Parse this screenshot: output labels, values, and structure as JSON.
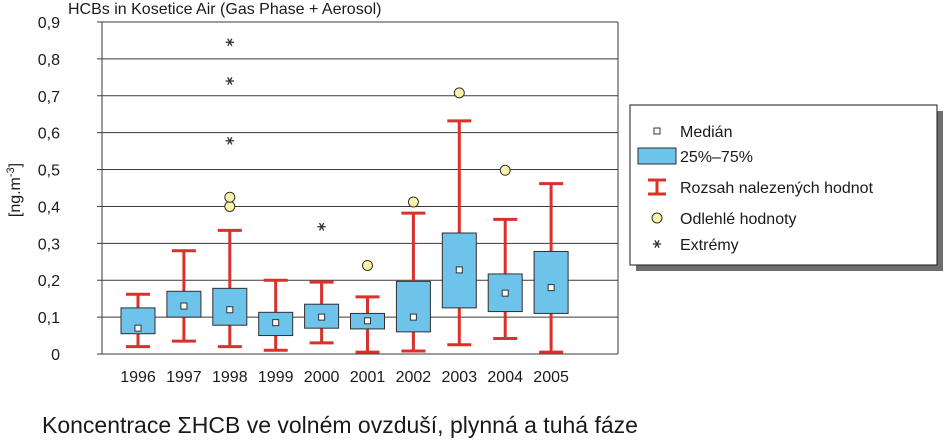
{
  "chart_data": {
    "type": "box",
    "title": "HCBs in Kosetice Air (Gas Phase + Aerosol)",
    "ylabel": "[ng.m-3]",
    "ylabel_main": "[ng.m",
    "ylabel_sup": "-3",
    "ylabel_close": "]",
    "ylim": [
      0,
      0.9
    ],
    "yticks": [
      "0",
      "0,1",
      "0,2",
      "0,3",
      "0,4",
      "0,5",
      "0,6",
      "0,7",
      "0,8",
      "0,9"
    ],
    "grid": true,
    "legend_position": "right",
    "categories": [
      "1996",
      "1997",
      "1998",
      "1999",
      "2000",
      "2001",
      "2002",
      "2003",
      "2004",
      "2005"
    ],
    "series": [
      {
        "year": "1996",
        "min": 0.02,
        "q1": 0.055,
        "median": 0.07,
        "q3": 0.125,
        "max": 0.162,
        "outliers": [],
        "extremes": []
      },
      {
        "year": "1997",
        "min": 0.035,
        "q1": 0.1,
        "median": 0.13,
        "q3": 0.17,
        "max": 0.28,
        "outliers": [],
        "extremes": []
      },
      {
        "year": "1998",
        "min": 0.02,
        "q1": 0.078,
        "median": 0.12,
        "q3": 0.178,
        "max": 0.335,
        "outliers": [
          0.4,
          0.425
        ],
        "extremes": [
          0.578,
          0.74,
          0.845
        ]
      },
      {
        "year": "1999",
        "min": 0.01,
        "q1": 0.05,
        "median": 0.085,
        "q3": 0.113,
        "max": 0.2,
        "outliers": [],
        "extremes": []
      },
      {
        "year": "2000",
        "min": 0.03,
        "q1": 0.07,
        "median": 0.1,
        "q3": 0.135,
        "max": 0.195,
        "outliers": [],
        "extremes": [
          0.345
        ]
      },
      {
        "year": "2001",
        "min": 0.005,
        "q1": 0.068,
        "median": 0.09,
        "q3": 0.11,
        "max": 0.155,
        "outliers": [
          0.24
        ],
        "extremes": []
      },
      {
        "year": "2002",
        "min": 0.008,
        "q1": 0.06,
        "median": 0.1,
        "q3": 0.197,
        "max": 0.382,
        "outliers": [
          0.412
        ],
        "extremes": []
      },
      {
        "year": "2003",
        "min": 0.025,
        "q1": 0.125,
        "median": 0.228,
        "q3": 0.328,
        "max": 0.632,
        "outliers": [
          0.708
        ],
        "extremes": []
      },
      {
        "year": "2004",
        "min": 0.042,
        "q1": 0.115,
        "median": 0.165,
        "q3": 0.217,
        "max": 0.365,
        "outliers": [
          0.498
        ],
        "extremes": []
      },
      {
        "year": "2005",
        "min": 0.005,
        "q1": 0.11,
        "median": 0.18,
        "q3": 0.278,
        "max": 0.462,
        "outliers": [],
        "extremes": []
      }
    ],
    "legend": [
      {
        "key": "median",
        "label": "Medián"
      },
      {
        "key": "box",
        "label": "25%–75%"
      },
      {
        "key": "range",
        "label": "Rozsah nalezených hodnot"
      },
      {
        "key": "outlier",
        "label": "Odlehlé hodnoty"
      },
      {
        "key": "extreme",
        "label": "Extrémy"
      }
    ],
    "colors": {
      "box_fill": "#6ec3ea",
      "box_stroke": "#2f2f2f",
      "whisker": "#d9312b",
      "outlier_fill": "#fbf3a6",
      "grid": "#3a3a3a"
    }
  },
  "caption": "Koncentrace ΣHCB ve volném ovzduší, plynná a tuhá fáze"
}
